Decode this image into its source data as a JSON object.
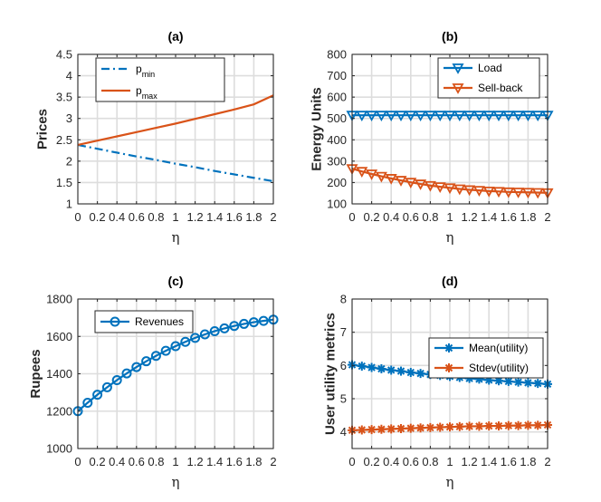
{
  "colors": {
    "blue": "#0072BD",
    "orange": "#D95319",
    "grid": "#dddddd",
    "axis": "#262626"
  },
  "chart_data": [
    {
      "type": "line",
      "title": "(a)",
      "xlabel": "η",
      "ylabel": "Prices",
      "xlim": [
        0,
        2
      ],
      "ylim": [
        1,
        4.5
      ],
      "x_ticks": [
        0,
        0.2,
        0.4,
        0.6,
        0.8,
        1,
        1.2,
        1.4,
        1.6,
        1.8,
        2
      ],
      "x_tick_labels": [
        "0",
        "0.2",
        "0.4",
        "0.6",
        "0.8",
        "1",
        "1.2",
        "1.4",
        "1.6",
        "1.8",
        "2"
      ],
      "y_ticks": [
        1,
        1.5,
        2,
        2.5,
        3,
        3.5,
        4,
        4.5
      ],
      "y_tick_labels": [
        "1",
        "1.5",
        "2",
        "2.5",
        "3",
        "3.5",
        "4",
        "4.5"
      ],
      "grid": true,
      "legend_position": "top-left",
      "x": [
        0,
        0.2,
        0.4,
        0.6,
        0.8,
        1.0,
        1.2,
        1.4,
        1.6,
        1.8,
        2.0
      ],
      "series": [
        {
          "name": "p_min",
          "label_main": "p",
          "label_sub": "min",
          "color": "#0072BD",
          "style": "dashdot",
          "marker": "none",
          "values": [
            2.38,
            2.29,
            2.2,
            2.11,
            2.03,
            1.94,
            1.86,
            1.77,
            1.69,
            1.61,
            1.53
          ]
        },
        {
          "name": "p_max",
          "label_main": "p",
          "label_sub": "max",
          "color": "#D95319",
          "style": "solid",
          "marker": "none",
          "values": [
            2.38,
            2.48,
            2.58,
            2.68,
            2.78,
            2.88,
            2.99,
            3.1,
            3.21,
            3.33,
            3.54
          ]
        }
      ]
    },
    {
      "type": "line",
      "title": "(b)",
      "xlabel": "η",
      "ylabel": "Energy Units",
      "xlim": [
        0,
        2
      ],
      "ylim": [
        100,
        800
      ],
      "x_ticks": [
        0,
        0.2,
        0.4,
        0.6,
        0.8,
        1,
        1.2,
        1.4,
        1.6,
        1.8,
        2
      ],
      "x_tick_labels": [
        "0",
        "0.2",
        "0.4",
        "0.6",
        "0.8",
        "1",
        "1.2",
        "1.4",
        "1.6",
        "1.8",
        "2"
      ],
      "y_ticks": [
        100,
        200,
        300,
        400,
        500,
        600,
        700,
        800
      ],
      "y_tick_labels": [
        "100",
        "200",
        "300",
        "400",
        "500",
        "600",
        "700",
        "800"
      ],
      "grid": true,
      "legend_position": "top-right",
      "x": [
        0,
        0.1,
        0.2,
        0.3,
        0.4,
        0.5,
        0.6,
        0.7,
        0.8,
        0.9,
        1.0,
        1.1,
        1.2,
        1.3,
        1.4,
        1.5,
        1.6,
        1.7,
        1.8,
        1.9,
        2.0
      ],
      "series": [
        {
          "name": "Load",
          "color": "#0072BD",
          "style": "solid",
          "marker": "triangle-down",
          "values": [
            515,
            515,
            515,
            515,
            515,
            515,
            515,
            515,
            515,
            515,
            515,
            515,
            515,
            515,
            515,
            515,
            515,
            515,
            515,
            515,
            515
          ]
        },
        {
          "name": "Sell-back",
          "color": "#D95319",
          "style": "solid",
          "marker": "triangle-down",
          "values": [
            265,
            252,
            240,
            229,
            219,
            210,
            201,
            193,
            186,
            180,
            175,
            170,
            166,
            163,
            160,
            158,
            156,
            155,
            154,
            153,
            152
          ]
        }
      ]
    },
    {
      "type": "line",
      "title": "(c)",
      "xlabel": "η",
      "ylabel": "Rupees",
      "xlim": [
        0,
        2
      ],
      "ylim": [
        1000,
        1800
      ],
      "x_ticks": [
        0,
        0.2,
        0.4,
        0.6,
        0.8,
        1,
        1.2,
        1.4,
        1.6,
        1.8,
        2
      ],
      "x_tick_labels": [
        "0",
        "0.2",
        "0.4",
        "0.6",
        "0.8",
        "1",
        "1.2",
        "1.4",
        "1.6",
        "1.8",
        "2"
      ],
      "y_ticks": [
        1000,
        1200,
        1400,
        1600,
        1800
      ],
      "y_tick_labels": [
        "1000",
        "1200",
        "1400",
        "1600",
        "1800"
      ],
      "grid": true,
      "legend_position": "top-left",
      "x": [
        0,
        0.1,
        0.2,
        0.3,
        0.4,
        0.5,
        0.6,
        0.7,
        0.8,
        0.9,
        1.0,
        1.1,
        1.2,
        1.3,
        1.4,
        1.5,
        1.6,
        1.7,
        1.8,
        1.9,
        2.0
      ],
      "series": [
        {
          "name": "Revenues",
          "color": "#0072BD",
          "style": "solid",
          "marker": "circle",
          "values": [
            1200,
            1245,
            1288,
            1328,
            1366,
            1402,
            1436,
            1467,
            1496,
            1523,
            1548,
            1571,
            1592,
            1611,
            1628,
            1643,
            1656,
            1667,
            1676,
            1683,
            1690
          ]
        }
      ]
    },
    {
      "type": "line",
      "title": "(d)",
      "xlabel": "η",
      "ylabel": "User utility metrics",
      "xlim": [
        0,
        2
      ],
      "ylim": [
        3.5,
        8
      ],
      "x_ticks": [
        0,
        0.2,
        0.4,
        0.6,
        0.8,
        1,
        1.2,
        1.4,
        1.6,
        1.8,
        2
      ],
      "x_tick_labels": [
        "0",
        "0.2",
        "0.4",
        "0.6",
        "0.8",
        "1",
        "1.2",
        "1.4",
        "1.6",
        "1.8",
        "2"
      ],
      "y_ticks": [
        4,
        5,
        6,
        7,
        8
      ],
      "y_tick_labels": [
        "4",
        "5",
        "6",
        "7",
        "8"
      ],
      "grid": true,
      "legend_position": "top-right",
      "x": [
        0,
        0.1,
        0.2,
        0.3,
        0.4,
        0.5,
        0.6,
        0.7,
        0.8,
        0.9,
        1.0,
        1.1,
        1.2,
        1.3,
        1.4,
        1.5,
        1.6,
        1.7,
        1.8,
        1.9,
        2.0
      ],
      "series": [
        {
          "name": "Mean(utility)",
          "color": "#0072BD",
          "style": "solid",
          "marker": "asterisk",
          "values": [
            6.02,
            5.98,
            5.94,
            5.9,
            5.86,
            5.83,
            5.79,
            5.76,
            5.73,
            5.7,
            5.67,
            5.64,
            5.61,
            5.59,
            5.56,
            5.54,
            5.52,
            5.5,
            5.48,
            5.46,
            5.44
          ]
        },
        {
          "name": "Stdev(utility)",
          "color": "#D95319",
          "style": "solid",
          "marker": "asterisk",
          "values": [
            4.05,
            4.06,
            4.07,
            4.08,
            4.09,
            4.1,
            4.11,
            4.12,
            4.13,
            4.14,
            4.15,
            4.16,
            4.17,
            4.17,
            4.18,
            4.18,
            4.19,
            4.19,
            4.2,
            4.2,
            4.21
          ]
        }
      ]
    }
  ]
}
